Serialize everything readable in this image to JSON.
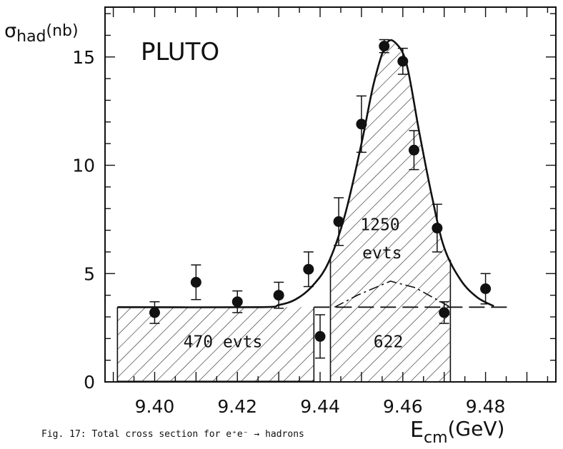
{
  "chart_data": {
    "type": "scatter",
    "title": "PLUTO",
    "xlabel_main": "E",
    "xlabel_sub": "cm",
    "xlabel_unit": "(GeV)",
    "ylabel_main": "σ",
    "ylabel_sub": "had",
    "ylabel_unit": "(nb)",
    "xlim": [
      9.388,
      9.497
    ],
    "ylim": [
      0,
      17.3
    ],
    "x_ticks": [
      9.4,
      9.42,
      9.44,
      9.46,
      9.48
    ],
    "x_tick_labels": [
      "9.40",
      "9.42",
      "9.44",
      "9.46",
      "9.48"
    ],
    "y_ticks": [
      0,
      5,
      10,
      15
    ],
    "y_tick_labels": [
      "0",
      "5",
      "10",
      "15"
    ],
    "series": [
      {
        "points": [
          {
            "x": 9.4,
            "y": 3.2,
            "err": 0.5
          },
          {
            "x": 9.41,
            "y": 4.6,
            "err": 0.8
          },
          {
            "x": 9.42,
            "y": 3.7,
            "err": 0.5
          },
          {
            "x": 9.43,
            "y": 4.0,
            "err": 0.6
          },
          {
            "x": 9.4372,
            "y": 5.2,
            "err": 0.8
          },
          {
            "x": 9.44,
            "y": 2.1,
            "err": 1.0
          },
          {
            "x": 9.4445,
            "y": 7.4,
            "err": 1.1
          },
          {
            "x": 9.45,
            "y": 11.9,
            "err": 1.3
          },
          {
            "x": 9.4555,
            "y": 15.5,
            "err": 0.3
          },
          {
            "x": 9.46,
            "y": 14.8,
            "err": 0.6
          },
          {
            "x": 9.4627,
            "y": 10.7,
            "err": 0.9
          },
          {
            "x": 9.4683,
            "y": 7.1,
            "err": 1.1
          },
          {
            "x": 9.47,
            "y": 3.2,
            "err": 0.5
          },
          {
            "x": 9.48,
            "y": 4.3,
            "err": 0.7
          }
        ]
      }
    ],
    "fit_curve": [
      [
        9.391,
        3.45
      ],
      [
        9.425,
        3.45
      ],
      [
        9.43,
        3.55
      ],
      [
        9.434,
        3.8
      ],
      [
        9.438,
        4.4
      ],
      [
        9.442,
        5.5
      ],
      [
        9.446,
        7.7
      ],
      [
        9.45,
        11.0
      ],
      [
        9.453,
        13.8
      ],
      [
        9.456,
        15.6
      ],
      [
        9.4585,
        15.6
      ],
      [
        9.461,
        14.6
      ],
      [
        9.464,
        11.5
      ],
      [
        9.467,
        8.6
      ],
      [
        9.47,
        6.2
      ],
      [
        9.474,
        4.7
      ],
      [
        9.478,
        3.9
      ],
      [
        9.482,
        3.5
      ]
    ],
    "continuum_level": 3.45,
    "background_curve": [
      [
        9.4435,
        3.45
      ],
      [
        9.449,
        4.0
      ],
      [
        9.457,
        4.65
      ],
      [
        9.463,
        4.35
      ],
      [
        9.4715,
        3.45
      ]
    ],
    "hatched_regions": [
      {
        "x0": 9.391,
        "x1": 9.4385
      },
      {
        "x0": 9.4425,
        "x1": 9.4715
      }
    ],
    "annotations": [
      "470 evts",
      "622",
      "1250",
      "evts"
    ]
  },
  "caption": "Fig. 17: Total cross section for e⁺e⁻ → hadrons"
}
